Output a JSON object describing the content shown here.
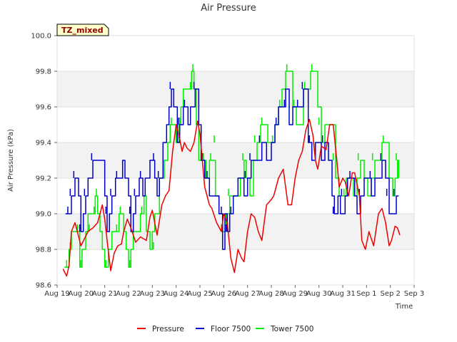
{
  "chart_data": {
    "type": "line",
    "title": "Air Pressure",
    "xlabel": "Time",
    "ylabel": "Air Pressure (kPa)",
    "badge": "TZ_mixed",
    "x_units": "days since Aug 19",
    "xlim": [
      0,
      15
    ],
    "ylim": [
      98.6,
      100.0
    ],
    "x_tick_labels": [
      "Aug 19",
      "Aug 20",
      "Aug 21",
      "Aug 22",
      "Aug 23",
      "Aug 24",
      "Aug 25",
      "Aug 26",
      "Aug 27",
      "Aug 28",
      "Aug 29",
      "Aug 30",
      "Aug 31",
      "Sep 1",
      "Sep 2",
      "Sep 3"
    ],
    "y_ticks": [
      98.6,
      98.8,
      99.0,
      99.2,
      99.4,
      99.6,
      99.8,
      100.0
    ],
    "y_tick_labels": [
      "98.6",
      "98.8",
      "99.0",
      "99.2",
      "99.4",
      "99.6",
      "99.8",
      "100.0"
    ],
    "grid": "horizontal bands",
    "legend_position": "bottom",
    "series": [
      {
        "name": "Pressure",
        "color": "#ee0000",
        "x": [
          0.25,
          0.4,
          0.5,
          0.6,
          0.75,
          0.85,
          1.0,
          1.15,
          1.3,
          1.5,
          1.7,
          1.9,
          2.0,
          2.1,
          2.25,
          2.4,
          2.55,
          2.7,
          2.8,
          2.95,
          3.1,
          3.3,
          3.5,
          3.75,
          3.9,
          4.0,
          4.2,
          4.4,
          4.55,
          4.7,
          4.85,
          5.0,
          5.15,
          5.25,
          5.35,
          5.45,
          5.6,
          5.75,
          5.9,
          6.0,
          6.2,
          6.4,
          6.5,
          6.7,
          6.9,
          7.0,
          7.15,
          7.3,
          7.45,
          7.6,
          7.75,
          7.85,
          8.0,
          8.15,
          8.3,
          8.45,
          8.6,
          8.8,
          9.0,
          9.1,
          9.3,
          9.5,
          9.7,
          9.85,
          10.0,
          10.15,
          10.3,
          10.45,
          10.6,
          10.75,
          10.85,
          10.95,
          11.1,
          11.3,
          11.45,
          11.6,
          11.75,
          11.85,
          12.0,
          12.1,
          12.25,
          12.4,
          12.5,
          12.7,
          12.8,
          12.95,
          13.1,
          13.3,
          13.5,
          13.65,
          13.8,
          13.95,
          14.05,
          14.2,
          14.3,
          14.4
        ],
        "y": [
          98.69,
          98.65,
          98.71,
          98.9,
          98.95,
          98.9,
          98.82,
          98.86,
          98.9,
          98.92,
          98.95,
          99.05,
          98.97,
          98.85,
          98.68,
          98.78,
          98.82,
          98.83,
          98.9,
          98.97,
          98.92,
          98.84,
          98.87,
          98.85,
          98.98,
          99.02,
          98.88,
          99.05,
          99.1,
          99.13,
          99.35,
          99.5,
          99.42,
          99.35,
          99.4,
          99.37,
          99.35,
          99.4,
          99.52,
          99.45,
          99.15,
          99.05,
          99.03,
          98.95,
          98.9,
          99.0,
          98.95,
          98.75,
          98.67,
          98.8,
          98.75,
          98.73,
          98.9,
          99.0,
          98.98,
          98.9,
          98.85,
          99.05,
          99.08,
          99.1,
          99.2,
          99.25,
          99.05,
          99.05,
          99.2,
          99.3,
          99.35,
          99.47,
          99.53,
          99.44,
          99.3,
          99.25,
          99.38,
          99.36,
          99.5,
          99.5,
          99.3,
          99.15,
          99.2,
          99.18,
          99.1,
          99.23,
          99.23,
          99.1,
          98.85,
          98.8,
          98.9,
          98.82,
          99.0,
          99.03,
          98.95,
          98.82,
          98.85,
          98.93,
          98.92,
          98.88
        ]
      },
      {
        "name": "Floor 7500",
        "color": "#0000cc",
        "x": [
          0.35,
          0.5,
          0.6,
          0.75,
          0.9,
          1.0,
          1.1,
          1.2,
          1.3,
          1.5,
          1.65,
          2.0,
          2.1,
          2.2,
          2.3,
          2.45,
          2.55,
          2.75,
          2.85,
          3.0,
          3.1,
          3.2,
          3.3,
          3.45,
          3.55,
          3.6,
          3.7,
          3.8,
          3.9,
          4.1,
          4.2,
          4.3,
          4.45,
          4.6,
          4.7,
          4.8,
          4.9,
          5.05,
          5.15,
          5.3,
          5.4,
          5.5,
          5.6,
          5.7,
          5.8,
          5.95,
          6.05,
          6.2,
          6.4,
          6.65,
          6.8,
          6.95,
          7.05,
          7.15,
          7.25,
          7.4,
          7.6,
          7.75,
          7.85,
          8.0,
          8.15,
          8.3,
          8.45,
          8.6,
          8.8,
          9.0,
          9.15,
          9.3,
          9.45,
          9.6,
          9.75,
          9.9,
          10.05,
          10.2,
          10.35,
          10.55,
          10.7,
          10.85,
          10.95,
          11.1,
          11.25,
          11.4,
          11.55,
          11.65,
          11.8,
          11.9,
          12.0,
          12.1,
          12.2,
          12.35,
          12.5,
          12.6,
          12.75,
          12.9,
          13.05,
          13.2,
          13.35,
          13.5,
          13.65,
          13.8,
          13.95,
          14.1,
          14.25,
          14.35
        ],
        "y": [
          99.0,
          99.0,
          99.1,
          99.2,
          99.1,
          98.9,
          99.0,
          99.1,
          99.2,
          99.3,
          99.3,
          99.1,
          98.9,
          99.0,
          99.1,
          99.2,
          99.2,
          99.3,
          99.2,
          99.1,
          98.9,
          99.0,
          99.1,
          99.2,
          99.2,
          99.1,
          99.2,
          99.2,
          99.3,
          99.2,
          99.1,
          99.2,
          99.4,
          99.5,
          99.6,
          99.7,
          99.6,
          99.4,
          99.5,
          99.6,
          99.6,
          99.5,
          99.6,
          99.6,
          99.7,
          99.5,
          99.3,
          99.2,
          99.1,
          99.1,
          99.0,
          98.8,
          99.0,
          98.9,
          99.0,
          99.1,
          99.2,
          99.2,
          99.1,
          99.2,
          99.3,
          99.3,
          99.3,
          99.4,
          99.3,
          99.4,
          99.5,
          99.6,
          99.6,
          99.7,
          99.5,
          99.6,
          99.6,
          99.6,
          99.7,
          99.4,
          99.3,
          99.4,
          99.4,
          99.3,
          99.4,
          99.3,
          99.1,
          99.0,
          99.1,
          99.0,
          99.0,
          99.1,
          99.2,
          99.2,
          99.1,
          99.0,
          99.1,
          99.2,
          99.2,
          99.1,
          99.2,
          99.2,
          99.3,
          99.2,
          99.0,
          99.0,
          99.1,
          99.1
        ],
        "tick_points": [
          [
            0.45,
            99.0
          ],
          [
            0.55,
            99.1
          ],
          [
            0.7,
            99.2
          ],
          [
            0.95,
            98.9
          ],
          [
            1.15,
            99.1
          ],
          [
            1.45,
            99.3
          ],
          [
            2.05,
            99.0
          ],
          [
            2.25,
            99.1
          ],
          [
            2.5,
            99.2
          ],
          [
            3.05,
            99.0
          ],
          [
            3.25,
            99.1
          ],
          [
            3.5,
            99.2
          ],
          [
            4.05,
            99.3
          ],
          [
            4.25,
            99.2
          ],
          [
            4.75,
            99.7
          ],
          [
            5.1,
            99.5
          ],
          [
            5.35,
            99.6
          ],
          [
            5.75,
            99.7
          ],
          [
            6.1,
            99.3
          ],
          [
            6.3,
            99.2
          ],
          [
            6.9,
            99.0
          ],
          [
            7.1,
            98.9
          ],
          [
            7.3,
            99.0
          ],
          [
            7.9,
            99.2
          ],
          [
            8.1,
            99.3
          ],
          [
            8.5,
            99.4
          ],
          [
            9.2,
            99.5
          ],
          [
            9.55,
            99.6
          ],
          [
            10.1,
            99.6
          ],
          [
            10.3,
            99.7
          ],
          [
            10.6,
            99.4
          ],
          [
            11.15,
            99.4
          ],
          [
            11.6,
            99.0
          ],
          [
            11.95,
            99.1
          ],
          [
            12.3,
            99.2
          ],
          [
            12.7,
            99.1
          ],
          [
            13.15,
            99.2
          ],
          [
            13.6,
            99.3
          ],
          [
            13.85,
            99.1
          ],
          [
            14.15,
            99.1
          ]
        ]
      },
      {
        "name": "Tower 7500",
        "color": "#00ee00",
        "x": [
          0.3,
          0.5,
          0.6,
          0.8,
          0.95,
          1.05,
          1.2,
          1.3,
          1.5,
          1.6,
          1.7,
          1.8,
          1.9,
          2.0,
          2.15,
          2.3,
          2.45,
          2.6,
          2.8,
          2.9,
          3.0,
          3.1,
          3.2,
          3.3,
          3.5,
          3.65,
          3.75,
          3.9,
          4.0,
          4.1,
          4.2,
          4.3,
          4.4,
          4.5,
          4.65,
          4.75,
          4.9,
          5.0,
          5.1,
          5.2,
          5.3,
          5.45,
          5.55,
          5.65,
          5.75,
          5.85,
          5.95,
          6.1,
          6.25,
          6.4,
          6.55,
          6.65,
          6.8,
          6.95,
          7.1,
          7.25,
          7.4,
          7.55,
          7.7,
          7.85,
          7.95,
          8.1,
          8.25,
          8.4,
          8.55,
          8.7,
          8.85,
          9.0,
          9.15,
          9.3,
          9.45,
          9.6,
          9.75,
          9.9,
          10.05,
          10.2,
          10.35,
          10.5,
          10.65,
          10.8,
          10.95,
          11.1,
          11.25,
          11.4,
          11.55,
          11.7,
          11.85,
          12.0,
          12.15,
          12.3,
          12.45,
          12.6,
          12.75,
          12.9,
          13.05,
          13.2,
          13.35,
          13.5,
          13.65,
          13.8,
          13.95,
          14.1,
          14.2,
          14.3,
          14.35
        ],
        "y": [
          98.7,
          98.8,
          98.9,
          98.9,
          98.7,
          98.8,
          98.9,
          99.0,
          99.0,
          99.1,
          99.0,
          98.9,
          98.8,
          98.7,
          98.8,
          98.9,
          98.9,
          99.0,
          98.9,
          98.8,
          98.7,
          98.8,
          98.9,
          98.9,
          99.0,
          99.1,
          98.9,
          98.8,
          98.9,
          99.0,
          99.0,
          99.2,
          99.2,
          99.3,
          99.4,
          99.5,
          99.5,
          99.4,
          99.5,
          99.6,
          99.7,
          99.7,
          99.7,
          99.8,
          99.7,
          99.5,
          99.3,
          99.3,
          99.2,
          99.3,
          99.3,
          99.1,
          99.0,
          98.9,
          99.0,
          99.1,
          99.1,
          99.1,
          99.2,
          99.3,
          99.2,
          99.1,
          99.3,
          99.4,
          99.5,
          99.5,
          99.4,
          99.4,
          99.5,
          99.6,
          99.7,
          99.8,
          99.8,
          99.6,
          99.5,
          99.5,
          99.7,
          99.7,
          99.8,
          99.8,
          99.6,
          99.4,
          99.5,
          99.5,
          99.5,
          99.2,
          99.1,
          99.1,
          99.2,
          99.2,
          99.1,
          99.2,
          99.3,
          99.2,
          99.1,
          99.2,
          99.3,
          99.3,
          99.4,
          99.4,
          99.2,
          99.1,
          99.2,
          99.3,
          99.2
        ],
        "tick_points": [
          [
            0.4,
            98.7
          ],
          [
            0.55,
            98.8
          ],
          [
            0.85,
            98.9
          ],
          [
            1.0,
            98.7
          ],
          [
            1.35,
            98.9
          ],
          [
            1.55,
            99.0
          ],
          [
            1.65,
            99.1
          ],
          [
            2.05,
            98.7
          ],
          [
            2.5,
            98.9
          ],
          [
            2.65,
            99.0
          ],
          [
            3.05,
            98.7
          ],
          [
            3.55,
            99.0
          ],
          [
            3.7,
            99.1
          ],
          [
            4.05,
            98.8
          ],
          [
            4.45,
            99.2
          ],
          [
            4.8,
            99.5
          ],
          [
            5.15,
            99.5
          ],
          [
            5.6,
            99.7
          ],
          [
            5.7,
            99.8
          ],
          [
            6.15,
            99.3
          ],
          [
            6.45,
            99.3
          ],
          [
            6.6,
            99.4
          ],
          [
            6.9,
            98.9
          ],
          [
            7.2,
            99.1
          ],
          [
            7.8,
            99.3
          ],
          [
            8.3,
            99.4
          ],
          [
            8.6,
            99.5
          ],
          [
            9.05,
            99.4
          ],
          [
            9.35,
            99.6
          ],
          [
            9.65,
            99.8
          ],
          [
            9.95,
            99.6
          ],
          [
            10.4,
            99.7
          ],
          [
            10.7,
            99.8
          ],
          [
            11.0,
            99.5
          ],
          [
            11.6,
            99.3
          ],
          [
            12.05,
            99.1
          ],
          [
            12.65,
            99.3
          ],
          [
            13.25,
            99.3
          ],
          [
            13.7,
            99.4
          ],
          [
            14.25,
            99.3
          ]
        ]
      }
    ]
  }
}
